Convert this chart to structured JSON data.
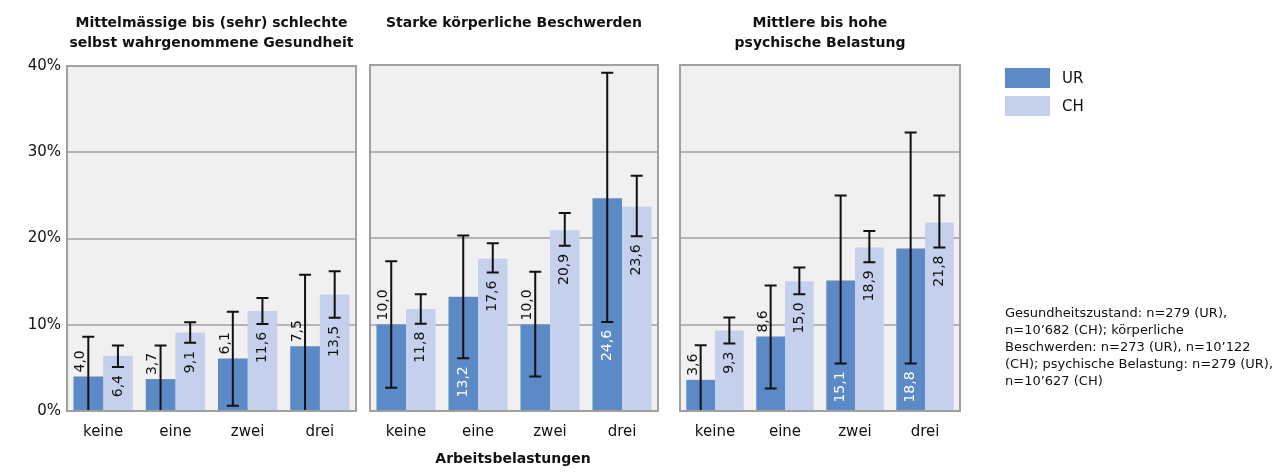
{
  "chart_data": [
    {
      "type": "bar",
      "title": "Mittelmässige bis (sehr) schlechte selbst wahrgenommene Gesundheit",
      "categories": [
        "keine",
        "eine",
        "zwei",
        "drei"
      ],
      "series": [
        {
          "color": "#5b8ac6",
          "values": [
            4.0,
            3.7,
            6.1,
            7.5
          ],
          "value_labels": [
            "4,0",
            "3,7",
            "6,1",
            "7,5"
          ],
          "errors": [
            [
              0,
              8.6
            ],
            [
              0,
              7.6
            ],
            [
              0.6,
              11.5
            ],
            [
              0,
              15.8
            ]
          ]
        },
        {
          "color": "#c5d0ec",
          "values": [
            6.4,
            9.1,
            11.6,
            13.5
          ],
          "value_labels": [
            "6,4",
            "9,1",
            "11,6",
            "13,5"
          ],
          "errors": [
            [
              5.1,
              7.6
            ],
            [
              7.9,
              10.3
            ],
            [
              10.1,
              13.1
            ],
            [
              10.8,
              16.2
            ]
          ]
        }
      ],
      "ylim": [
        0,
        40
      ],
      "yticks": [
        {
          "value": 0,
          "label": "0%"
        },
        {
          "value": 10,
          "label": "10%"
        },
        {
          "value": 20,
          "label": "20%"
        },
        {
          "value": 30,
          "label": "30%"
        },
        {
          "value": 40,
          "label": "40%"
        }
      ],
      "grid": "y"
    },
    {
      "type": "bar",
      "title": "Starke körperliche Beschwerden",
      "xlabel": "Arbeitsbelastungen",
      "categories": [
        "keine",
        "eine",
        "zwei",
        "drei"
      ],
      "series": [
        {
          "color": "#5b8ac6",
          "values": [
            10.0,
            13.2,
            10.0,
            24.6
          ],
          "value_labels": [
            "10,0",
            "13,2",
            "10,0",
            "24,6"
          ],
          "errors": [
            [
              2.7,
              17.3
            ],
            [
              6.1,
              20.3
            ],
            [
              4.0,
              16.1
            ],
            [
              10.3,
              39.1
            ]
          ]
        },
        {
          "color": "#c5d0ec",
          "values": [
            11.8,
            17.6,
            20.9,
            23.6
          ],
          "value_labels": [
            "11,8",
            "17,6",
            "20,9",
            "23,6"
          ],
          "errors": [
            [
              10.1,
              13.5
            ],
            [
              16.0,
              19.4
            ],
            [
              19.1,
              22.9
            ],
            [
              20.2,
              27.2
            ]
          ]
        }
      ],
      "ylim": [
        0,
        40
      ],
      "yticks": [
        0,
        10,
        20,
        30,
        40
      ],
      "grid": "y",
      "tick_labels": "x"
    },
    {
      "type": "bar",
      "title": "Mittlere bis hohe psychische Belastung",
      "categories": [
        "keine",
        "eine",
        "zwei",
        "drei"
      ],
      "series": [
        {
          "name": "UR",
          "color": "#5b8ac6",
          "values": [
            3.6,
            8.6,
            15.1,
            18.8
          ],
          "value_labels": [
            "3,6",
            "8,6",
            "15,1",
            "18,8"
          ],
          "errors": [
            [
              0,
              7.6
            ],
            [
              2.6,
              14.5
            ],
            [
              5.5,
              24.9
            ],
            [
              5.5,
              32.2
            ]
          ]
        },
        {
          "name": "CH",
          "color": "#c5d0ec",
          "values": [
            9.3,
            15.0,
            18.9,
            21.8
          ],
          "value_labels": [
            "9,3",
            "15,0",
            "18,9",
            "21,8"
          ],
          "errors": [
            [
              7.8,
              10.8
            ],
            [
              13.5,
              16.6
            ],
            [
              17.2,
              20.8
            ],
            [
              18.9,
              24.9
            ]
          ]
        }
      ],
      "ylim": [
        0,
        40
      ],
      "yticks": [
        0,
        10,
        20,
        30,
        40
      ],
      "grid": "y",
      "tick_labels": "x",
      "legend": "right",
      "annotations": [
        "Gesundheitszustand: n=279 (UR), n=10’682 (CH); körperliche Beschwerden: n=273 (UR), n=10’122 (CH); psychische Belastung: n=279 (UR), n=10’627 (CH)"
      ]
    }
  ]
}
